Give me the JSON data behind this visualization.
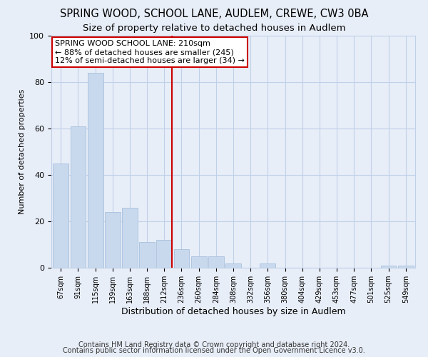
{
  "title": "SPRING WOOD, SCHOOL LANE, AUDLEM, CREWE, CW3 0BA",
  "subtitle": "Size of property relative to detached houses in Audlem",
  "xlabel": "Distribution of detached houses by size in Audlem",
  "ylabel": "Number of detached properties",
  "bar_labels": [
    "67sqm",
    "91sqm",
    "115sqm",
    "139sqm",
    "163sqm",
    "188sqm",
    "212sqm",
    "236sqm",
    "260sqm",
    "284sqm",
    "308sqm",
    "332sqm",
    "356sqm",
    "380sqm",
    "404sqm",
    "429sqm",
    "453sqm",
    "477sqm",
    "501sqm",
    "525sqm",
    "549sqm"
  ],
  "bar_values": [
    45,
    61,
    84,
    24,
    26,
    11,
    12,
    8,
    5,
    5,
    2,
    0,
    2,
    0,
    0,
    0,
    0,
    0,
    0,
    1,
    1
  ],
  "bar_color": "#c8d9ee",
  "bar_edge_color": "#a8c0dc",
  "reference_line_x_label": "212sqm",
  "reference_line_color": "#cc0000",
  "ylim": [
    0,
    100
  ],
  "annotation_text": "SPRING WOOD SCHOOL LANE: 210sqm\n← 88% of detached houses are smaller (245)\n12% of semi-detached houses are larger (34) →",
  "annotation_box_edge_color": "#cc0000",
  "footer_line1": "Contains HM Land Registry data © Crown copyright and database right 2024.",
  "footer_line2": "Contains public sector information licensed under the Open Government Licence v3.0.",
  "background_color": "#e8eef8",
  "plot_background_color": "#e8eef8",
  "grid_color": "#c0d0e8",
  "title_fontsize": 10.5,
  "subtitle_fontsize": 9.5,
  "annotation_fontsize": 8,
  "footer_fontsize": 7
}
